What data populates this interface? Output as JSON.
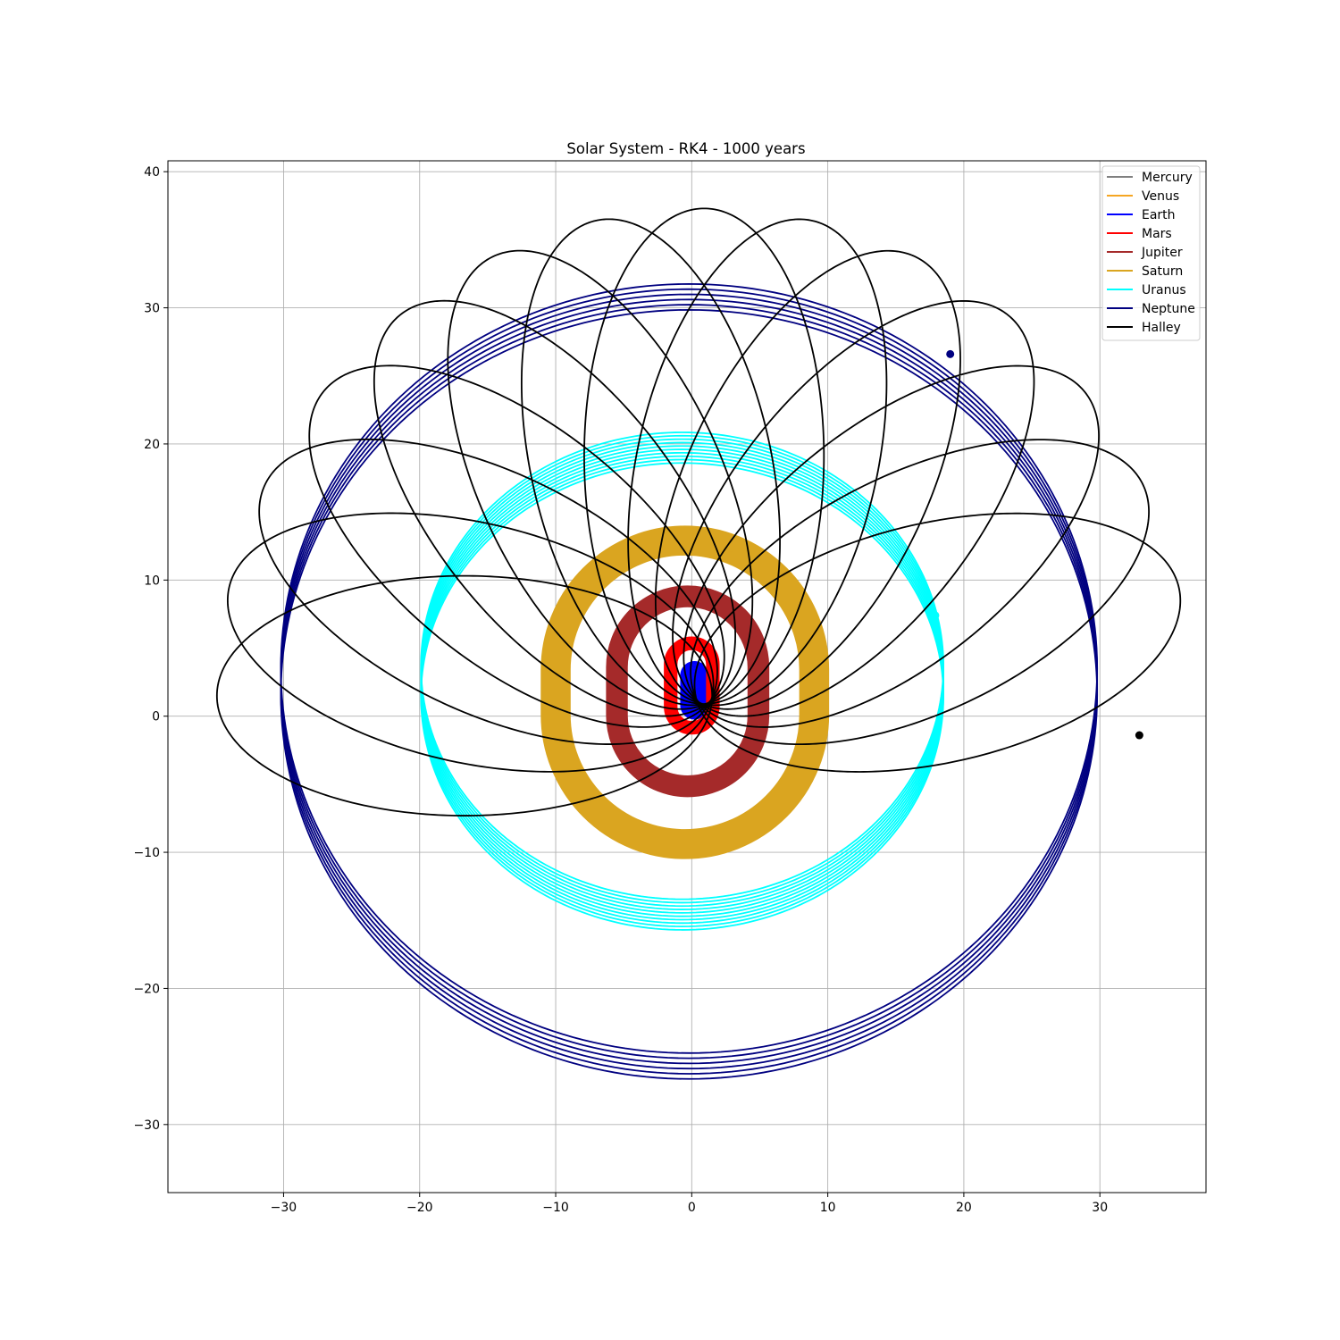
{
  "chart_data": {
    "type": "line",
    "title": "Solar System - RK4 - 1000 years",
    "xlabel": "",
    "ylabel": "",
    "xlim": [
      -38.5,
      37.8
    ],
    "ylim": [
      -35.0,
      40.8
    ],
    "xticks": [
      -30,
      -20,
      -10,
      0,
      10,
      20,
      30
    ],
    "yticks": [
      -30,
      -20,
      -10,
      0,
      10,
      20,
      30,
      40
    ],
    "grid": true,
    "legend_position": "top-right",
    "series": [
      {
        "name": "Mercury",
        "color": "#808080",
        "kind": "drift_ellipse",
        "semi_major_x": 0.39,
        "semi_major_y": 0.38,
        "start_center": [
          0.7,
          1.2
        ],
        "end_center": [
          0.7,
          2.6
        ],
        "loops": 30,
        "final_position": [
          0.7,
          2.0
        ]
      },
      {
        "name": "Venus",
        "color": "#f5a623",
        "kind": "drift_ellipse",
        "semi_major_x": 0.72,
        "semi_major_y": 0.72,
        "start_center": [
          0.4,
          1.0
        ],
        "end_center": [
          0.4,
          2.8
        ],
        "loops": 30,
        "final_position": [
          0.9,
          2.5
        ]
      },
      {
        "name": "Earth",
        "color": "#0000ff",
        "kind": "drift_ellipse",
        "semi_major_x": 1.0,
        "semi_major_y": 1.0,
        "start_center": [
          0.2,
          0.8
        ],
        "end_center": [
          0.2,
          3.0
        ],
        "loops": 30,
        "final_position": [
          1.0,
          3.2
        ]
      },
      {
        "name": "Mars",
        "color": "#ff0000",
        "kind": "band",
        "radius_x": 1.55,
        "radius_y": 1.55,
        "start_center": [
          0.0,
          0.7
        ],
        "end_center": [
          0.0,
          3.8
        ],
        "final_position": [
          -1.4,
          3.9
        ]
      },
      {
        "name": "Jupiter",
        "color": "#a52a2a",
        "kind": "band",
        "radius_x": 5.2,
        "radius_y": 5.2,
        "start_center": [
          -0.3,
          0.05
        ],
        "end_center": [
          -0.3,
          3.6
        ],
        "final_position": [
          4.6,
          6.1
        ]
      },
      {
        "name": "Saturn",
        "color": "#daa520",
        "kind": "band",
        "radius_x": 9.5,
        "radius_y": 9.5,
        "start_center": [
          -0.5,
          0.1
        ],
        "end_center": [
          -0.5,
          3.4
        ],
        "final_position": [
          2.9,
          12.4
        ]
      },
      {
        "name": "Uranus",
        "color": "#00ffff",
        "kind": "concentric",
        "radius_x": 19.2,
        "radius_y": 17.15,
        "start_center": [
          -0.7,
          1.45
        ],
        "end_center": [
          -0.7,
          3.7
        ],
        "loops": 10,
        "final_position": [
          17.9,
          7.4
        ]
      },
      {
        "name": "Neptune",
        "color": "#000080",
        "kind": "concentric",
        "radius_x": 30.0,
        "radius_y": 28.25,
        "start_center": [
          -0.2,
          1.6
        ],
        "end_center": [
          -0.2,
          3.5
        ],
        "loops": 6,
        "final_position": [
          19.0,
          26.6
        ]
      },
      {
        "name": "Halley",
        "color": "#000000",
        "kind": "precessing_ellipse",
        "focus": [
          0.9,
          1.5
        ],
        "semi_major_axis": 18.2,
        "eccentricity": 0.967,
        "start_angle_deg": 180,
        "angle_step_deg": -12.86,
        "loops": 14,
        "start_position": [
          -35.0,
          0.0
        ],
        "final_position": [
          32.9,
          -1.4
        ]
      }
    ]
  }
}
